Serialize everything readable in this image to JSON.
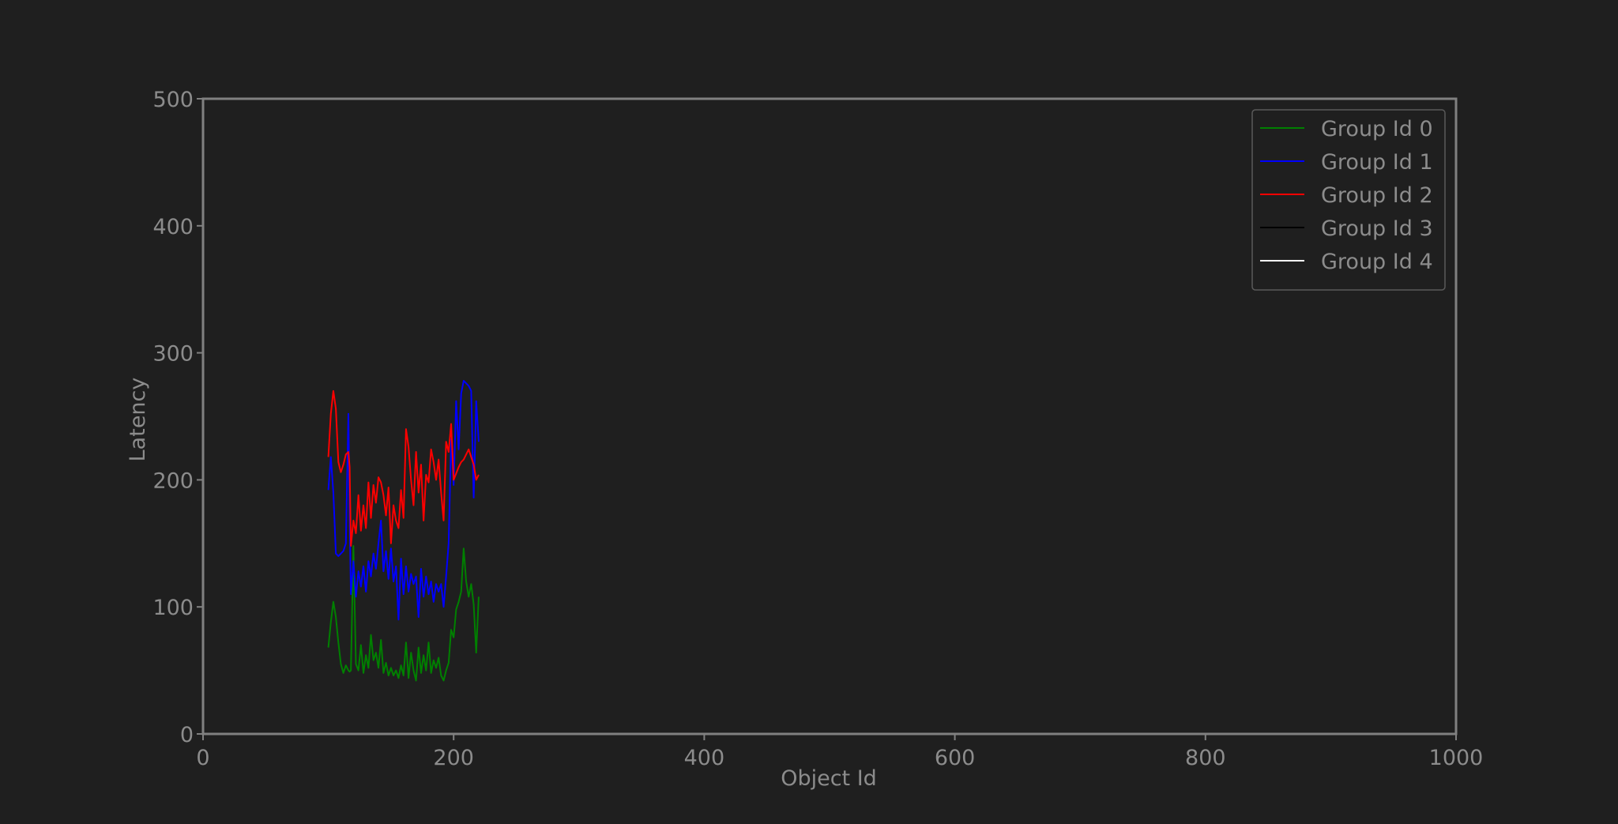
{
  "chart_data": {
    "type": "line",
    "title": "",
    "xlabel": "Object Id",
    "ylabel": "Latency",
    "xlim": [
      0,
      1000
    ],
    "ylim": [
      0,
      500
    ],
    "xticks": [
      0,
      200,
      400,
      600,
      800,
      1000
    ],
    "yticks": [
      0,
      100,
      200,
      300,
      400,
      500
    ],
    "xtick_labels": [
      "0",
      "200",
      "400",
      "600",
      "800",
      "1000"
    ],
    "ytick_labels": [
      "0",
      "100",
      "200",
      "300",
      "400",
      "500"
    ],
    "grid": false,
    "legend_position": "top-right",
    "colors": {
      "background": "#1f1f1f",
      "axes": "#808080",
      "text": "#8c8c8c"
    },
    "series": [
      {
        "name": "Group Id 0",
        "color": "#008000",
        "x": [
          100,
          102,
          104,
          106,
          108,
          110,
          112,
          114,
          116,
          117,
          118,
          120,
          122,
          124,
          126,
          128,
          130,
          132,
          134,
          136,
          138,
          140,
          142,
          144,
          146,
          148,
          150,
          152,
          154,
          156,
          158,
          160,
          162,
          164,
          166,
          168,
          170,
          172,
          174,
          176,
          178,
          180,
          182,
          184,
          186,
          188,
          190,
          192,
          194,
          196,
          198,
          200,
          202,
          204,
          206,
          208,
          210,
          212,
          214,
          216,
          218,
          220
        ],
        "y": [
          68,
          88,
          104,
          92,
          72,
          55,
          48,
          54,
          50,
          49,
          50,
          148,
          55,
          50,
          70,
          48,
          62,
          52,
          78,
          58,
          64,
          52,
          74,
          48,
          56,
          46,
          52,
          46,
          50,
          44,
          54,
          46,
          72,
          44,
          64,
          50,
          42,
          68,
          48,
          62,
          50,
          72,
          48,
          58,
          52,
          60,
          46,
          42,
          50,
          56,
          82,
          76,
          98,
          104,
          112,
          146,
          120,
          108,
          118,
          102,
          64,
          108
        ]
      },
      {
        "name": "Group Id 1",
        "color": "#0000ff",
        "x": [
          100,
          102,
          104,
          106,
          108,
          110,
          112,
          114,
          116,
          117,
          118,
          120,
          122,
          124,
          126,
          128,
          130,
          132,
          134,
          136,
          138,
          140,
          142,
          144,
          146,
          148,
          150,
          152,
          154,
          156,
          158,
          160,
          162,
          164,
          166,
          168,
          170,
          172,
          174,
          176,
          178,
          180,
          182,
          184,
          186,
          188,
          190,
          192,
          194,
          196,
          198,
          200,
          202,
          204,
          206,
          208,
          210,
          212,
          214,
          216,
          218,
          220
        ],
        "y": [
          192,
          218,
          190,
          142,
          140,
          142,
          144,
          150,
          252,
          172,
          110,
          136,
          108,
          128,
          116,
          132,
          112,
          136,
          124,
          142,
          130,
          150,
          168,
          128,
          144,
          122,
          146,
          120,
          132,
          90,
          138,
          110,
          132,
          112,
          126,
          118,
          124,
          92,
          130,
          108,
          124,
          110,
          120,
          104,
          118,
          112,
          118,
          100,
          124,
          150,
          232,
          196,
          262,
          224,
          268,
          278,
          276,
          274,
          270,
          186,
          262,
          230
        ]
      },
      {
        "name": "Group Id 2",
        "color": "#ff0000",
        "x": [
          100,
          102,
          104,
          106,
          108,
          110,
          112,
          114,
          116,
          117,
          118,
          120,
          122,
          124,
          126,
          128,
          130,
          132,
          134,
          136,
          138,
          140,
          142,
          144,
          146,
          148,
          150,
          152,
          154,
          156,
          158,
          160,
          162,
          164,
          166,
          168,
          170,
          172,
          174,
          176,
          178,
          180,
          182,
          184,
          186,
          188,
          190,
          192,
          194,
          196,
          198,
          200,
          202,
          204,
          206,
          208,
          210,
          212,
          214,
          216,
          218,
          220
        ],
        "y": [
          218,
          252,
          270,
          256,
          214,
          206,
          212,
          220,
          222,
          210,
          148,
          168,
          158,
          188,
          160,
          180,
          162,
          198,
          170,
          196,
          182,
          202,
          198,
          188,
          172,
          194,
          150,
          180,
          168,
          162,
          192,
          170,
          240,
          226,
          200,
          180,
          222,
          190,
          212,
          168,
          204,
          198,
          224,
          214,
          200,
          216,
          190,
          168,
          230,
          222,
          244,
          200,
          205,
          210,
          214,
          216,
          220,
          224,
          218,
          212,
          200,
          204
        ]
      },
      {
        "name": "Group Id 3",
        "color": "#000000",
        "x": [],
        "y": []
      },
      {
        "name": "Group Id 4",
        "color": "#ffffff",
        "x": [],
        "y": []
      }
    ]
  }
}
